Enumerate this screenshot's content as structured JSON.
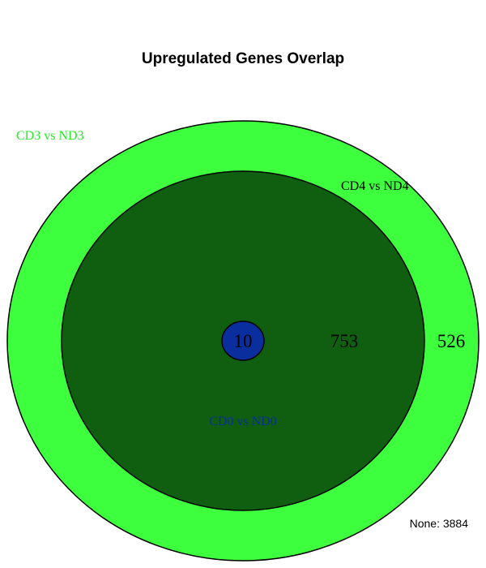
{
  "title": "Upregulated Genes Overlap",
  "sets": [
    {
      "name": "CD3 vs ND3",
      "fill_color": "#3dff3d",
      "label_color": "#22ee22"
    },
    {
      "name": "CD4 vs ND4",
      "fill_color": "#105f10",
      "label_color": "#000000"
    },
    {
      "name": "CD0 vs ND0",
      "fill_color": "#0a2e9e",
      "label_color": "#0a2e9e"
    }
  ],
  "regions": {
    "cd0_all": "10",
    "cd4_cd3_only": "753",
    "cd3_only": "526"
  },
  "none_text": "None: 3884",
  "colors": {
    "outline": "#000000",
    "text": "#000000"
  }
}
